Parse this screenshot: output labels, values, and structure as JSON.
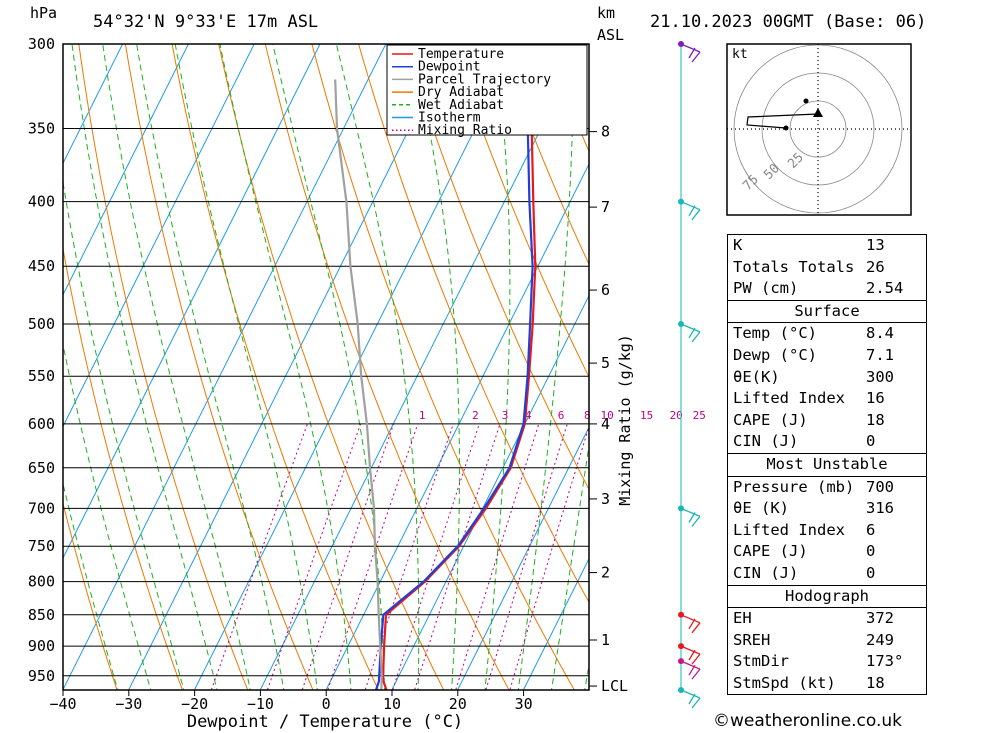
{
  "header": {
    "location": "54°32'N  9°33'E  17m  ASL",
    "datetime": "21.10.2023  00GMT  (Base: 06)",
    "p_unit": "hPa",
    "km_unit": "km",
    "asl_unit": "ASL"
  },
  "legend": [
    {
      "label": "Temperature",
      "color": "#e8191e",
      "style": "solid"
    },
    {
      "label": "Dewpoint",
      "color": "#1f3fd6",
      "style": "solid"
    },
    {
      "label": "Parcel Trajectory",
      "color": "#a0a0a0",
      "style": "solid"
    },
    {
      "label": "Dry Adiabat",
      "color": "#f07800",
      "style": "solid"
    },
    {
      "label": "Wet Adiabat",
      "color": "#20b020",
      "style": "dashed"
    },
    {
      "label": "Isotherm",
      "color": "#1e9be6",
      "style": "solid"
    },
    {
      "label": "Mixing Ratio",
      "color": "#c0008a",
      "style": "dotted"
    }
  ],
  "chart_data": {
    "type": "line",
    "xlabel": "Dewpoint / Temperature (°C)",
    "ylabel": "",
    "y2label": "Mixing Ratio (g/kg)",
    "xlim": [
      -40,
      40
    ],
    "x_ticks": [
      "−40",
      "−30",
      "−20",
      "−10",
      "0",
      "10",
      "20",
      "30"
    ],
    "x_tick_values": [
      -40,
      -30,
      -20,
      -10,
      0,
      10,
      20,
      30
    ],
    "y_scale": "log-pressure",
    "ylim_hpa": [
      975,
      300
    ],
    "pressure_levels": [
      300,
      350,
      400,
      450,
      500,
      550,
      600,
      650,
      700,
      750,
      800,
      850,
      900,
      950
    ],
    "km_ticks": [
      {
        "label": "8",
        "p": 352
      },
      {
        "label": "7",
        "p": 404
      },
      {
        "label": "6",
        "p": 470
      },
      {
        "label": "5",
        "p": 537
      },
      {
        "label": "4",
        "p": 600
      },
      {
        "label": "3",
        "p": 688
      },
      {
        "label": "2",
        "p": 787
      },
      {
        "label": "1",
        "p": 890
      },
      {
        "label": "LCL",
        "p": 968
      }
    ],
    "mixing_ratio_labels": [
      {
        "label": "1",
        "x": -5.6
      },
      {
        "label": "2",
        "x": 2.5
      },
      {
        "label": "3",
        "x": 7.0
      },
      {
        "label": "4",
        "x": 10.5
      },
      {
        "label": "6",
        "x": 15.5
      },
      {
        "label": "8",
        "x": 19.5
      },
      {
        "label": "10",
        "x": 22.5
      },
      {
        "label": "15",
        "x": 28.5
      },
      {
        "label": "20",
        "x": 33.0
      },
      {
        "label": "25",
        "x": 36.5
      }
    ],
    "series": [
      {
        "name": "Temperature",
        "color": "#e8191e",
        "points": [
          [
            975,
            9.2
          ],
          [
            960,
            8.1
          ],
          [
            950,
            7.6
          ],
          [
            900,
            5.5
          ],
          [
            850,
            3.4
          ],
          [
            800,
            6.8
          ],
          [
            750,
            9.3
          ],
          [
            700,
            10.5
          ],
          [
            650,
            11.2
          ],
          [
            600,
            10.0
          ],
          [
            550,
            7.0
          ],
          [
            500,
            3.6
          ],
          [
            450,
            -0.4
          ],
          [
            400,
            -5.6
          ],
          [
            350,
            -11.4
          ],
          [
            300,
            -19.5
          ]
        ]
      },
      {
        "name": "Dewpoint",
        "color": "#1f3fd6",
        "points": [
          [
            975,
            7.6
          ],
          [
            960,
            7.4
          ],
          [
            950,
            7.0
          ],
          [
            900,
            5.0
          ],
          [
            850,
            3.0
          ],
          [
            800,
            6.6
          ],
          [
            750,
            9.1
          ],
          [
            700,
            10.2
          ],
          [
            650,
            11.0
          ],
          [
            600,
            9.8
          ],
          [
            550,
            6.8
          ],
          [
            500,
            3.2
          ],
          [
            450,
            -0.8
          ],
          [
            400,
            -6.2
          ],
          [
            350,
            -12.0
          ],
          [
            300,
            -20.0
          ]
        ]
      },
      {
        "name": "Parcel Trajectory",
        "color": "#a0a0a0",
        "points": [
          [
            975,
            8.4
          ],
          [
            950,
            7.4
          ],
          [
            900,
            4.9
          ],
          [
            850,
            2.3
          ],
          [
            800,
            -0.4
          ],
          [
            750,
            -3.5
          ],
          [
            700,
            -6.5
          ],
          [
            650,
            -10.2
          ],
          [
            600,
            -14.0
          ],
          [
            550,
            -18.5
          ],
          [
            500,
            -23.0
          ],
          [
            450,
            -28.5
          ],
          [
            400,
            -34.0
          ],
          [
            350,
            -41.0
          ],
          [
            320,
            -45.0
          ]
        ]
      }
    ]
  },
  "wind_profile": [
    {
      "p": 300,
      "color": "#7b1fbf"
    },
    {
      "p": 400,
      "color": "#1ab7b7"
    },
    {
      "p": 500,
      "color": "#1ab7b7"
    },
    {
      "p": 700,
      "color": "#1ab7b7"
    },
    {
      "p": 850,
      "color": "#e8191e"
    },
    {
      "p": 900,
      "color": "#e8191e"
    },
    {
      "p": 925,
      "color": "#c41a8a"
    },
    {
      "p": 975,
      "color": "#1ab7b7"
    }
  ],
  "hodograph": {
    "unit": "kt",
    "rings": [
      "25",
      "50",
      "75"
    ]
  },
  "indices": {
    "main": [
      {
        "label": "K",
        "value": "13"
      },
      {
        "label": "Totals Totals",
        "value": "26"
      },
      {
        "label": "PW (cm)",
        "value": "2.54"
      }
    ],
    "surface": {
      "title": "Surface",
      "rows": [
        {
          "label": "Temp (°C)",
          "value": "8.4"
        },
        {
          "label": "Dewp (°C)",
          "value": "7.1"
        },
        {
          "label": "θE(K)",
          "value": "300"
        },
        {
          "label": "Lifted Index",
          "value": "16"
        },
        {
          "label": "CAPE (J)",
          "value": "18"
        },
        {
          "label": "CIN (J)",
          "value": "0"
        }
      ]
    },
    "most_unstable": {
      "title": "Most Unstable",
      "rows": [
        {
          "label": "Pressure (mb)",
          "value": "700"
        },
        {
          "label": "θE (K)",
          "value": "316"
        },
        {
          "label": "Lifted Index",
          "value": "6"
        },
        {
          "label": "CAPE (J)",
          "value": "0"
        },
        {
          "label": "CIN (J)",
          "value": "0"
        }
      ]
    },
    "hodograph": {
      "title": "Hodograph",
      "rows": [
        {
          "label": "EH",
          "value": "372"
        },
        {
          "label": "SREH",
          "value": "249"
        },
        {
          "label": "StmDir",
          "value": "173°"
        },
        {
          "label": "StmSpd (kt)",
          "value": "18"
        }
      ]
    }
  },
  "copyright": "©weatheronline.co.uk"
}
